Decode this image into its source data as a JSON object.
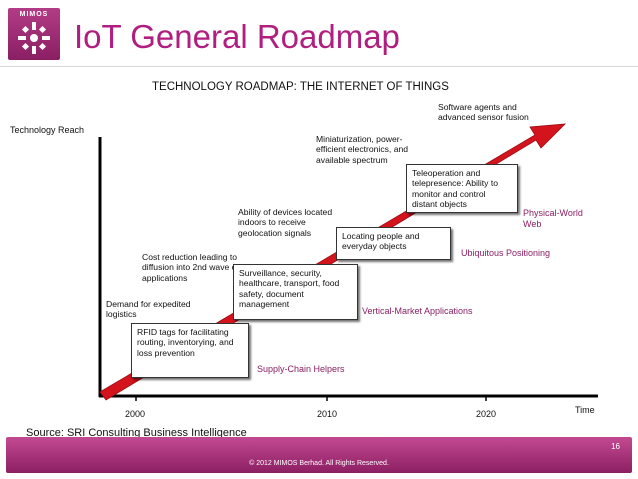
{
  "header": {
    "logo_text": "MIMOS",
    "title": "IoT General Roadmap"
  },
  "diagram": {
    "title": "TECHNOLOGY ROADMAP: THE INTERNET OF THINGS",
    "y_axis_label": "Technology Reach",
    "x_axis_label": "Time",
    "x_ticks": [
      "2000",
      "2010",
      "2020"
    ],
    "drivers": [
      "Demand for expedited logistics",
      "Cost reduction leading to diffusion into 2nd wave of applications",
      "Ability of devices located indoors to receive geolocation signals",
      "Miniaturization, power-efficient electronics, and available spectrum",
      "Software agents and advanced sensor fusion"
    ],
    "capabilities": [
      "RFID tags for facilitating routing, inventorying, and loss prevention",
      "Surveillance, security, healthcare, transport, food safety,  document management",
      "Locating people and everyday objects",
      "Teleoperation and telepresence: Ability to monitor and control distant objects"
    ],
    "phases": [
      "Supply-Chain Helpers",
      "Vertical-Market Applications",
      "Ubiquitous Positioning",
      "Physical-World Web"
    ],
    "arrow_color": "#d4141c",
    "phase_color": "#8a1f63"
  },
  "source": "Source: SRI Consulting Business Intelligence",
  "footer": {
    "page_number": "16",
    "copyright": "© 2012 MIMOS Berhad. All Rights Reserved."
  }
}
